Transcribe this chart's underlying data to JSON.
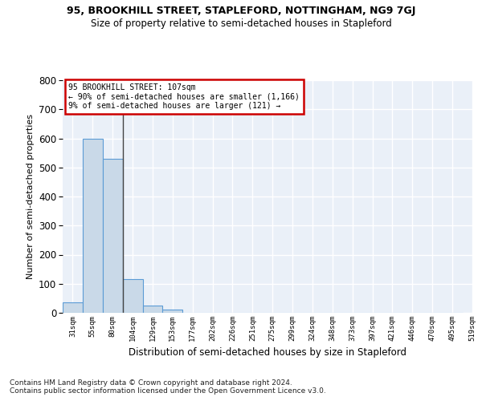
{
  "title": "95, BROOKHILL STREET, STAPLEFORD, NOTTINGHAM, NG9 7GJ",
  "subtitle": "Size of property relative to semi-detached houses in Stapleford",
  "xlabel": "Distribution of semi-detached houses by size in Stapleford",
  "ylabel": "Number of semi-detached properties",
  "footnote1": "Contains HM Land Registry data © Crown copyright and database right 2024.",
  "footnote2": "Contains public sector information licensed under the Open Government Licence v3.0.",
  "bin_labels": [
    "31sqm",
    "55sqm",
    "80sqm",
    "104sqm",
    "129sqm",
    "153sqm",
    "177sqm",
    "202sqm",
    "226sqm",
    "251sqm",
    "275sqm",
    "299sqm",
    "324sqm",
    "348sqm",
    "373sqm",
    "397sqm",
    "421sqm",
    "446sqm",
    "470sqm",
    "495sqm",
    "519sqm"
  ],
  "bar_heights": [
    35,
    600,
    530,
    115,
    25,
    10,
    0,
    0,
    0,
    0,
    0,
    0,
    0,
    0,
    0,
    0,
    0,
    0,
    0,
    0
  ],
  "bar_color": "#c9d9e8",
  "bar_edge_color": "#5b9bd5",
  "background_color": "#eaf0f8",
  "grid_color": "#ffffff",
  "annotation_text1": "95 BROOKHILL STREET: 107sqm",
  "annotation_text2": "← 90% of semi-detached houses are smaller (1,166)",
  "annotation_text3": "9% of semi-detached houses are larger (121) →",
  "annotation_box_color": "#cc0000",
  "vline_x": 3,
  "ylim": [
    0,
    800
  ],
  "yticks": [
    0,
    100,
    200,
    300,
    400,
    500,
    600,
    700,
    800
  ]
}
